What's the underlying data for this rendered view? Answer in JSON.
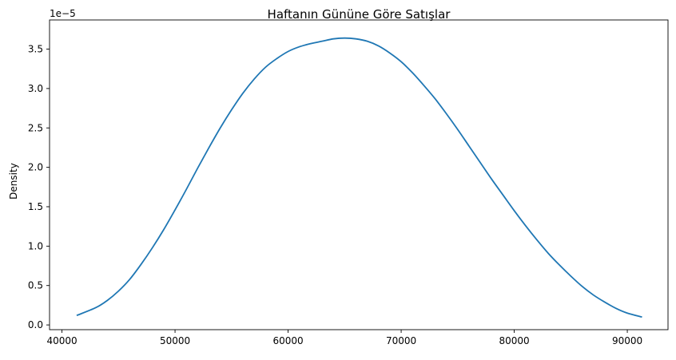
{
  "chart_data": {
    "type": "line",
    "title": "Haftanın Gününe Göre Satışlar",
    "xlabel": "",
    "ylabel": "Density",
    "y_offset_label": "1e−5",
    "x_ticks": [
      40000,
      50000,
      60000,
      70000,
      80000,
      90000
    ],
    "x_tick_labels": [
      "40000",
      "50000",
      "60000",
      "70000",
      "80000",
      "90000"
    ],
    "y_ticks": [
      0.0,
      0.5,
      1.0,
      1.5,
      2.0,
      2.5,
      3.0,
      3.5
    ],
    "y_tick_labels": [
      "0.0",
      "0.5",
      "1.0",
      "1.5",
      "2.0",
      "2.5",
      "3.0",
      "3.5"
    ],
    "xlim": [
      38900,
      93600
    ],
    "ylim": [
      -0.06,
      3.87
    ],
    "y_scale_factor": "1e-5",
    "grid": false,
    "legend": false,
    "series": [
      {
        "color": "#1f77b4",
        "x": [
          41300,
          43000,
          44000,
          45000,
          46000,
          47000,
          48000,
          49000,
          50000,
          51000,
          52000,
          53000,
          54000,
          55000,
          56000,
          57000,
          58000,
          59000,
          60000,
          61000,
          62000,
          63000,
          64000,
          65000,
          66000,
          67000,
          68000,
          69000,
          70000,
          71000,
          72000,
          73000,
          74000,
          75000,
          76000,
          77000,
          78000,
          79000,
          80000,
          81000,
          82000,
          83000,
          84000,
          85000,
          86000,
          87000,
          88000,
          89000,
          90000,
          91300
        ],
        "y": [
          0.12,
          0.22,
          0.31,
          0.43,
          0.58,
          0.77,
          0.98,
          1.21,
          1.46,
          1.72,
          1.99,
          2.25,
          2.5,
          2.73,
          2.94,
          3.12,
          3.27,
          3.38,
          3.47,
          3.53,
          3.57,
          3.6,
          3.63,
          3.64,
          3.63,
          3.6,
          3.54,
          3.45,
          3.34,
          3.2,
          3.04,
          2.87,
          2.68,
          2.48,
          2.27,
          2.06,
          1.85,
          1.65,
          1.45,
          1.26,
          1.08,
          0.91,
          0.76,
          0.62,
          0.49,
          0.38,
          0.29,
          0.21,
          0.15,
          0.1
        ]
      }
    ]
  }
}
